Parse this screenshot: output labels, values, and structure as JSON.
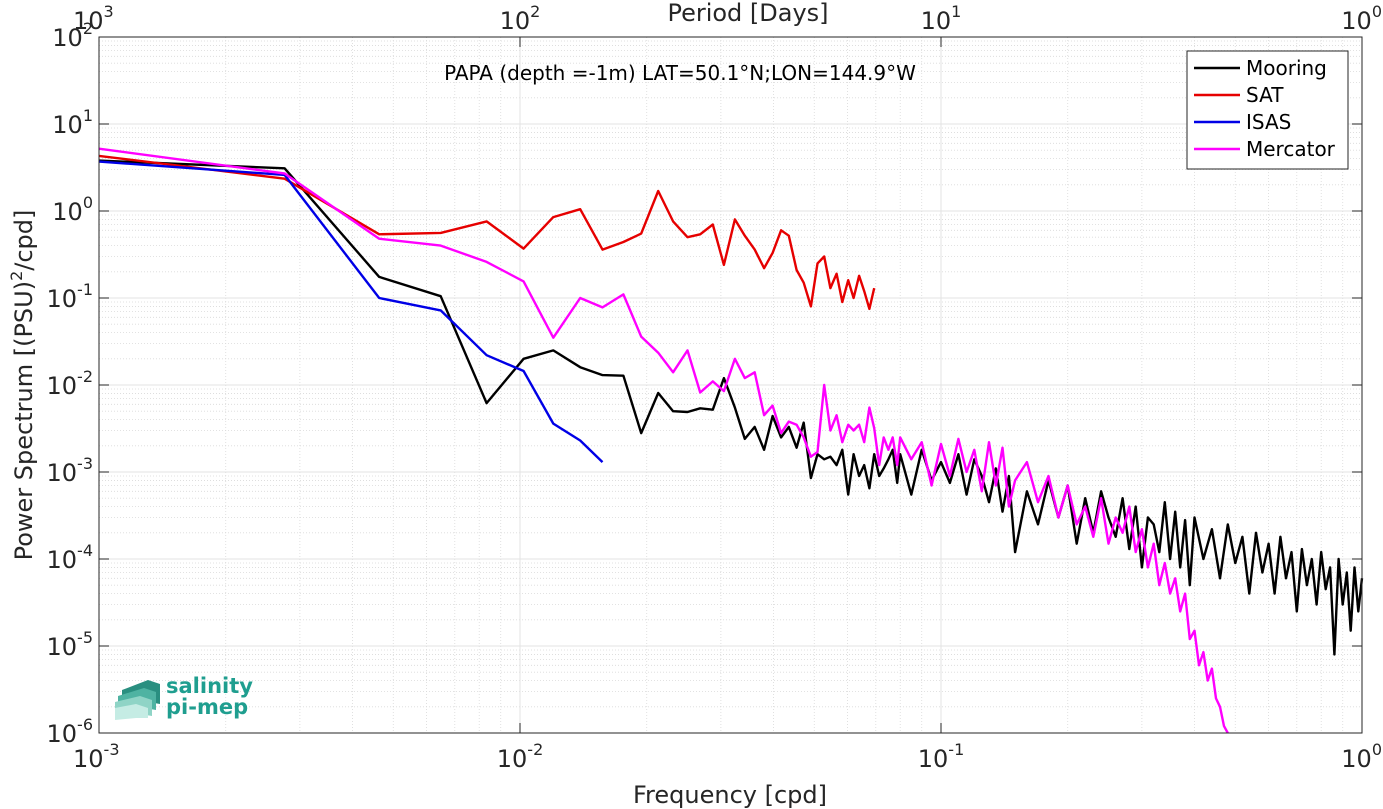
{
  "chart_data": {
    "type": "line",
    "title": "PAPA (depth =-1m) LAT=50.1°N;LON=144.9°W",
    "xlabel": "Frequency [cpd]",
    "ylabel": "Power Spectrum [(PSU)²/cpd]",
    "ylabel_parts": [
      "Power Spectrum [(PSU)",
      "2",
      "/cpd]"
    ],
    "top_xlabel": "Period [Days]",
    "x_scale": "log",
    "y_scale": "log",
    "xlim": [
      0.001,
      1
    ],
    "ylim": [
      1e-06,
      100
    ],
    "x_ticks": [
      0.001,
      0.01,
      0.1,
      1
    ],
    "x_tick_labels": [
      [
        "10",
        "-3"
      ],
      [
        "10",
        "-2"
      ],
      [
        "10",
        "-1"
      ],
      [
        "10",
        "0"
      ]
    ],
    "y_ticks": [
      1e-06,
      1e-05,
      0.0001,
      0.001,
      0.01,
      0.1,
      1,
      10,
      100
    ],
    "y_tick_labels": [
      [
        "10",
        "-6"
      ],
      [
        "10",
        "-5"
      ],
      [
        "10",
        "-4"
      ],
      [
        "10",
        "-3"
      ],
      [
        "10",
        "-2"
      ],
      [
        "10",
        "-1"
      ],
      [
        "10",
        "0"
      ],
      [
        "10",
        "1"
      ],
      [
        "10",
        "2"
      ]
    ],
    "top_x_ticks": [
      0.001,
      0.01,
      0.1,
      1
    ],
    "top_x_tick_labels": [
      [
        "10",
        "3"
      ],
      [
        "10",
        "2"
      ],
      [
        "10",
        "1"
      ],
      [
        "10",
        "0"
      ]
    ],
    "grid": true,
    "minor_grid": true,
    "legend_position": "top-right",
    "series": [
      {
        "name": "Mooring",
        "color": "#000000",
        "points": [
          [
            0.001,
            3.8
          ],
          [
            0.00276,
            3.1
          ],
          [
            0.00463,
            0.175
          ],
          [
            0.00648,
            0.105
          ],
          [
            0.00833,
            0.0062
          ],
          [
            0.0102,
            0.02
          ],
          [
            0.012,
            0.025
          ],
          [
            0.0139,
            0.016
          ],
          [
            0.0157,
            0.013
          ],
          [
            0.0176,
            0.0128
          ],
          [
            0.0194,
            0.0028
          ],
          [
            0.0213,
            0.0081
          ],
          [
            0.0231,
            0.005
          ],
          [
            0.025,
            0.0049
          ],
          [
            0.0268,
            0.0054
          ],
          [
            0.0287,
            0.0052
          ],
          [
            0.0305,
            0.012
          ],
          [
            0.0324,
            0.0055
          ],
          [
            0.0342,
            0.0024
          ],
          [
            0.0361,
            0.0033
          ],
          [
            0.038,
            0.0018
          ],
          [
            0.0398,
            0.0044
          ],
          [
            0.0417,
            0.0025
          ],
          [
            0.0435,
            0.0033
          ],
          [
            0.0454,
            0.0019
          ],
          [
            0.0472,
            0.0037
          ],
          [
            0.0491,
            0.00085
          ],
          [
            0.0509,
            0.0016
          ],
          [
            0.0528,
            0.0014
          ],
          [
            0.0546,
            0.0015
          ],
          [
            0.0565,
            0.0012
          ],
          [
            0.0583,
            0.0018
          ],
          [
            0.0602,
            0.00055
          ],
          [
            0.062,
            0.0016
          ],
          [
            0.0639,
            0.0009
          ],
          [
            0.0657,
            0.0012
          ],
          [
            0.0676,
            0.00065
          ],
          [
            0.0694,
            0.0016
          ],
          [
            0.0713,
            0.0009
          ],
          [
            0.0731,
            0.0011
          ],
          [
            0.075,
            0.0014
          ],
          [
            0.0768,
            0.0018
          ],
          [
            0.0787,
            0.00075
          ],
          [
            0.08,
            0.0016
          ],
          [
            0.085,
            0.00055
          ],
          [
            0.09,
            0.0018
          ],
          [
            0.095,
            0.0008
          ],
          [
            0.1,
            0.0013
          ],
          [
            0.105,
            0.00075
          ],
          [
            0.11,
            0.0016
          ],
          [
            0.115,
            0.00055
          ],
          [
            0.12,
            0.0014
          ],
          [
            0.125,
            0.0009
          ],
          [
            0.13,
            0.00045
          ],
          [
            0.135,
            0.0011
          ],
          [
            0.14,
            0.00035
          ],
          [
            0.145,
            0.0009
          ],
          [
            0.15,
            0.00012
          ],
          [
            0.16,
            0.0006
          ],
          [
            0.17,
            0.00025
          ],
          [
            0.18,
            0.0008
          ],
          [
            0.19,
            0.0003
          ],
          [
            0.2,
            0.0007
          ],
          [
            0.21,
            0.00015
          ],
          [
            0.22,
            0.0005
          ],
          [
            0.23,
            0.0002
          ],
          [
            0.24,
            0.0006
          ],
          [
            0.25,
            0.0003
          ],
          [
            0.26,
            0.00018
          ],
          [
            0.27,
            0.0005
          ],
          [
            0.28,
            0.00013
          ],
          [
            0.29,
            0.0004
          ],
          [
            0.3,
            8e-05
          ],
          [
            0.31,
            0.0003
          ],
          [
            0.32,
            0.00025
          ],
          [
            0.33,
            0.00012
          ],
          [
            0.34,
            0.00045
          ],
          [
            0.35,
            0.0001
          ],
          [
            0.36,
            0.00035
          ],
          [
            0.37,
            8e-05
          ],
          [
            0.38,
            0.00028
          ],
          [
            0.39,
            5e-05
          ],
          [
            0.4,
            0.0003
          ],
          [
            0.42,
            0.0001
          ],
          [
            0.44,
            0.00022
          ],
          [
            0.46,
            6e-05
          ],
          [
            0.48,
            0.00025
          ],
          [
            0.5,
            9e-05
          ],
          [
            0.52,
            0.00018
          ],
          [
            0.54,
            4e-05
          ],
          [
            0.56,
            0.0002
          ],
          [
            0.58,
            7e-05
          ],
          [
            0.6,
            0.00015
          ],
          [
            0.62,
            4e-05
          ],
          [
            0.64,
            0.00018
          ],
          [
            0.66,
            6e-05
          ],
          [
            0.68,
            0.00012
          ],
          [
            0.7,
            2.5e-05
          ],
          [
            0.72,
            0.00013
          ],
          [
            0.74,
            5e-05
          ],
          [
            0.76,
            0.0001
          ],
          [
            0.78,
            3e-05
          ],
          [
            0.8,
            0.00012
          ],
          [
            0.82,
            4.5e-05
          ],
          [
            0.84,
            8e-05
          ],
          [
            0.86,
            8e-06
          ],
          [
            0.88,
            0.0001
          ],
          [
            0.9,
            3e-05
          ],
          [
            0.92,
            7e-05
          ],
          [
            0.94,
            1.5e-05
          ],
          [
            0.96,
            8e-05
          ],
          [
            0.98,
            2.5e-05
          ],
          [
            1.0,
            6e-05
          ]
        ]
      },
      {
        "name": "SAT",
        "color": "#e60000",
        "points": [
          [
            0.001,
            4.3
          ],
          [
            0.00276,
            2.35
          ],
          [
            0.00463,
            0.54
          ],
          [
            0.00648,
            0.56
          ],
          [
            0.00833,
            0.76
          ],
          [
            0.0102,
            0.37
          ],
          [
            0.012,
            0.85
          ],
          [
            0.0139,
            1.05
          ],
          [
            0.0157,
            0.36
          ],
          [
            0.0176,
            0.44
          ],
          [
            0.0194,
            0.55
          ],
          [
            0.0213,
            1.7
          ],
          [
            0.0231,
            0.76
          ],
          [
            0.025,
            0.5
          ],
          [
            0.0268,
            0.54
          ],
          [
            0.0287,
            0.7
          ],
          [
            0.0305,
            0.24
          ],
          [
            0.0324,
            0.8
          ],
          [
            0.0342,
            0.52
          ],
          [
            0.0361,
            0.36
          ],
          [
            0.038,
            0.22
          ],
          [
            0.0398,
            0.33
          ],
          [
            0.0417,
            0.6
          ],
          [
            0.0435,
            0.52
          ],
          [
            0.0454,
            0.21
          ],
          [
            0.0472,
            0.15
          ],
          [
            0.0491,
            0.08
          ],
          [
            0.0509,
            0.25
          ],
          [
            0.0528,
            0.3
          ],
          [
            0.0546,
            0.13
          ],
          [
            0.0565,
            0.19
          ],
          [
            0.0583,
            0.09
          ],
          [
            0.0602,
            0.16
          ],
          [
            0.062,
            0.1
          ],
          [
            0.0639,
            0.18
          ],
          [
            0.0657,
            0.12
          ],
          [
            0.0676,
            0.075
          ],
          [
            0.0694,
            0.13
          ]
        ]
      },
      {
        "name": "ISAS",
        "color": "#0000e6",
        "points": [
          [
            0.001,
            3.7
          ],
          [
            0.00276,
            2.6
          ],
          [
            0.00463,
            0.1
          ],
          [
            0.00648,
            0.072
          ],
          [
            0.00833,
            0.022
          ],
          [
            0.0102,
            0.0145
          ],
          [
            0.012,
            0.0036
          ],
          [
            0.0139,
            0.0023
          ],
          [
            0.0157,
            0.0013
          ]
        ]
      },
      {
        "name": "Mercator",
        "color": "#ff00ff",
        "points": [
          [
            0.001,
            5.2
          ],
          [
            0.00276,
            2.7
          ],
          [
            0.00463,
            0.48
          ],
          [
            0.00648,
            0.4
          ],
          [
            0.00833,
            0.26
          ],
          [
            0.0102,
            0.155
          ],
          [
            0.012,
            0.035
          ],
          [
            0.0139,
            0.1
          ],
          [
            0.0157,
            0.078
          ],
          [
            0.0176,
            0.11
          ],
          [
            0.0194,
            0.036
          ],
          [
            0.0213,
            0.0235
          ],
          [
            0.0231,
            0.014
          ],
          [
            0.025,
            0.025
          ],
          [
            0.0268,
            0.0082
          ],
          [
            0.0287,
            0.011
          ],
          [
            0.0305,
            0.0085
          ],
          [
            0.0324,
            0.02
          ],
          [
            0.0342,
            0.012
          ],
          [
            0.0361,
            0.014
          ],
          [
            0.038,
            0.0045
          ],
          [
            0.0398,
            0.0058
          ],
          [
            0.0417,
            0.0028
          ],
          [
            0.0435,
            0.0038
          ],
          [
            0.0454,
            0.0035
          ],
          [
            0.0472,
            0.0025
          ],
          [
            0.0491,
            0.0015
          ],
          [
            0.0509,
            0.0017
          ],
          [
            0.0528,
            0.01
          ],
          [
            0.0546,
            0.003
          ],
          [
            0.0565,
            0.0045
          ],
          [
            0.0583,
            0.0022
          ],
          [
            0.0602,
            0.0035
          ],
          [
            0.062,
            0.003
          ],
          [
            0.0639,
            0.0035
          ],
          [
            0.0657,
            0.0022
          ],
          [
            0.0676,
            0.0055
          ],
          [
            0.0694,
            0.0032
          ],
          [
            0.0713,
            0.0012
          ],
          [
            0.0731,
            0.0025
          ],
          [
            0.075,
            0.0018
          ],
          [
            0.0768,
            0.0025
          ],
          [
            0.0787,
            0.0012
          ],
          [
            0.08,
            0.0025
          ],
          [
            0.085,
            0.0014
          ],
          [
            0.09,
            0.0022
          ],
          [
            0.095,
            0.0007
          ],
          [
            0.1,
            0.0021
          ],
          [
            0.105,
            0.0009
          ],
          [
            0.11,
            0.0024
          ],
          [
            0.115,
            0.001
          ],
          [
            0.12,
            0.0018
          ],
          [
            0.125,
            0.0006
          ],
          [
            0.13,
            0.0022
          ],
          [
            0.135,
            0.0007
          ],
          [
            0.14,
            0.0019
          ],
          [
            0.145,
            0.0004
          ],
          [
            0.15,
            0.0008
          ],
          [
            0.16,
            0.0013
          ],
          [
            0.17,
            0.00045
          ],
          [
            0.18,
            0.0009
          ],
          [
            0.19,
            0.0003
          ],
          [
            0.2,
            0.0007
          ],
          [
            0.21,
            0.00025
          ],
          [
            0.22,
            0.0004
          ],
          [
            0.23,
            0.00018
          ],
          [
            0.24,
            0.0005
          ],
          [
            0.25,
            0.00015
          ],
          [
            0.26,
            0.0003
          ],
          [
            0.27,
            0.0002
          ],
          [
            0.28,
            0.0004
          ],
          [
            0.29,
            0.00012
          ],
          [
            0.3,
            0.00022
          ],
          [
            0.31,
            8e-05
          ],
          [
            0.32,
            0.00015
          ],
          [
            0.33,
            5e-05
          ],
          [
            0.34,
            9e-05
          ],
          [
            0.35,
            4e-05
          ],
          [
            0.36,
            6e-05
          ],
          [
            0.37,
            2.5e-05
          ],
          [
            0.38,
            4e-05
          ],
          [
            0.39,
            1.2e-05
          ],
          [
            0.4,
            1.5e-05
          ],
          [
            0.41,
            6e-06
          ],
          [
            0.42,
            8.5e-06
          ],
          [
            0.43,
            4e-06
          ],
          [
            0.44,
            5.5e-06
          ],
          [
            0.45,
            2.5e-06
          ],
          [
            0.46,
            2e-06
          ],
          [
            0.47,
            1.2e-06
          ],
          [
            0.48,
            1e-06
          ]
        ]
      }
    ]
  },
  "logo": {
    "line1": "salinity",
    "line2": "pi-mep"
  }
}
